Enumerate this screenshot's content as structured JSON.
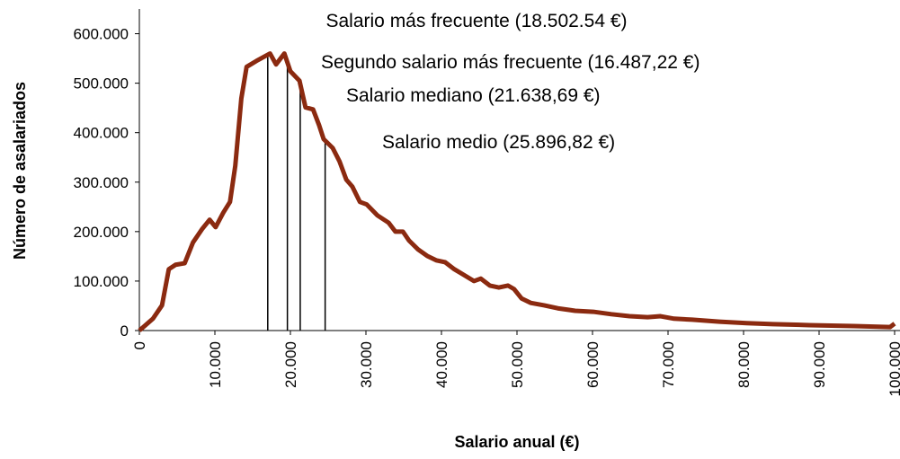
{
  "chart_data": {
    "type": "line",
    "x_label": "Salario anual (€)",
    "y_label": "Número de asalariados",
    "xlim": [
      0,
      100000
    ],
    "ylim": [
      0,
      650000
    ],
    "xticks": [
      0,
      {
        "value": 10000,
        "label": "10.000"
      },
      {
        "value": 20000,
        "label": "20.000"
      },
      {
        "value": 30000,
        "label": "30.000"
      },
      {
        "value": 40000,
        "label": "40.000"
      },
      {
        "value": 50000,
        "label": "50.000"
      },
      {
        "value": 60000,
        "label": "60.000"
      },
      {
        "value": 70000,
        "label": "70.000"
      },
      {
        "value": 80000,
        "label": "80.000"
      },
      {
        "value": 90000,
        "label": "90.000"
      },
      {
        "value": 100000,
        "label": "100.000"
      }
    ],
    "yticks": [
      0,
      {
        "value": 100000,
        "label": "100.000"
      },
      {
        "value": 200000,
        "label": "200.000"
      },
      {
        "value": 300000,
        "label": "300.000"
      },
      {
        "value": 400000,
        "label": "400.000"
      },
      {
        "value": 500000,
        "label": "500.000"
      },
      {
        "value": 600000,
        "label": "600.000"
      }
    ],
    "series": [
      {
        "color": "#8b2a10",
        "x": [
          0,
          1800,
          3000,
          3900,
          4800,
          6000,
          7100,
          8300,
          9300,
          10100,
          11100,
          12000,
          12700,
          13500,
          14200,
          15500,
          16700,
          17300,
          18100,
          19200,
          20000,
          21200,
          22000,
          23000,
          23800,
          24400,
          25600,
          26500,
          27400,
          28200,
          29200,
          30100,
          31500,
          33000,
          33900,
          34900,
          35700,
          36900,
          38100,
          39300,
          40500,
          41700,
          42900,
          44300,
          45200,
          46400,
          47600,
          48800,
          49600,
          50600,
          51800,
          53600,
          55400,
          57700,
          60100,
          62500,
          64900,
          67300,
          69000,
          70800,
          73200,
          76800,
          80400,
          83900,
          88700,
          94600,
          99400,
          100000
        ],
        "values": [
          0,
          24000,
          51000,
          124000,
          133000,
          136000,
          178000,
          205000,
          224000,
          209000,
          238000,
          260000,
          333000,
          469000,
          533000,
          545000,
          555000,
          560000,
          538000,
          560000,
          524000,
          505000,
          451000,
          447000,
          415000,
          387000,
          369000,
          342000,
          305000,
          291000,
          260000,
          255000,
          233000,
          218000,
          200000,
          200000,
          182000,
          164000,
          151000,
          142000,
          138000,
          124000,
          113000,
          100000,
          105000,
          91000,
          87000,
          91000,
          84000,
          65000,
          56000,
          51000,
          45000,
          40000,
          38000,
          33000,
          29000,
          27000,
          29000,
          24000,
          22000,
          18000,
          15000,
          13000,
          11000,
          9000,
          7000,
          14000
        ]
      }
    ],
    "annotations": [
      {
        "text": "Salario más frecuente (18.502.54 €)",
        "x": 19600
      },
      {
        "text": "Segundo salario más frecuente (16.487,22 €)",
        "x": 17000
      },
      {
        "text": "Salario mediano (21.638,69 €)",
        "x": 21300
      },
      {
        "text": "Salario medio (25.896,82 €)",
        "x": 24600
      }
    ]
  }
}
